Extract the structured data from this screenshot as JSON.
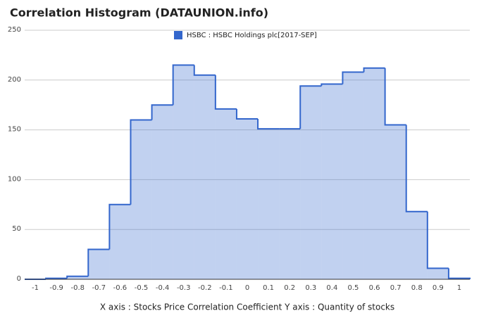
{
  "chart_data": {
    "type": "histogram",
    "title": "Correlation Histogram (DATAUNION.info)",
    "x_label": "X axis : Stocks Price Correlation Coefficient  Y axis : Quantity of stocks",
    "bins": [
      -1.05,
      -0.95,
      -0.85,
      -0.75,
      -0.65,
      -0.55,
      -0.45,
      -0.35,
      -0.25,
      -0.15,
      -0.05,
      0.05,
      0.15,
      0.25,
      0.35,
      0.45,
      0.55,
      0.65,
      0.75,
      0.85,
      0.95,
      1.05
    ],
    "series": [
      {
        "name": "HSBC : HSBC Holdings plc[2017-SEP]",
        "color": "#3366cc",
        "values": [
          0,
          1,
          3,
          30,
          75,
          160,
          175,
          215,
          205,
          171,
          161,
          151,
          151,
          194,
          196,
          208,
          212,
          155,
          68,
          11,
          1
        ]
      }
    ],
    "xlim": [
      -1.05,
      1.05
    ],
    "ylim": [
      0,
      250
    ],
    "xticks": [
      -1,
      -0.9,
      -0.8,
      -0.7,
      -0.6,
      -0.5,
      -0.4,
      -0.3,
      -0.2,
      -0.1,
      0,
      0.1,
      0.2,
      0.3,
      0.4,
      0.5,
      0.6,
      0.7,
      0.8,
      0.9,
      1
    ],
    "yticks": [
      0,
      50,
      100,
      150,
      200,
      250
    ],
    "grid": true,
    "legend": "top"
  }
}
